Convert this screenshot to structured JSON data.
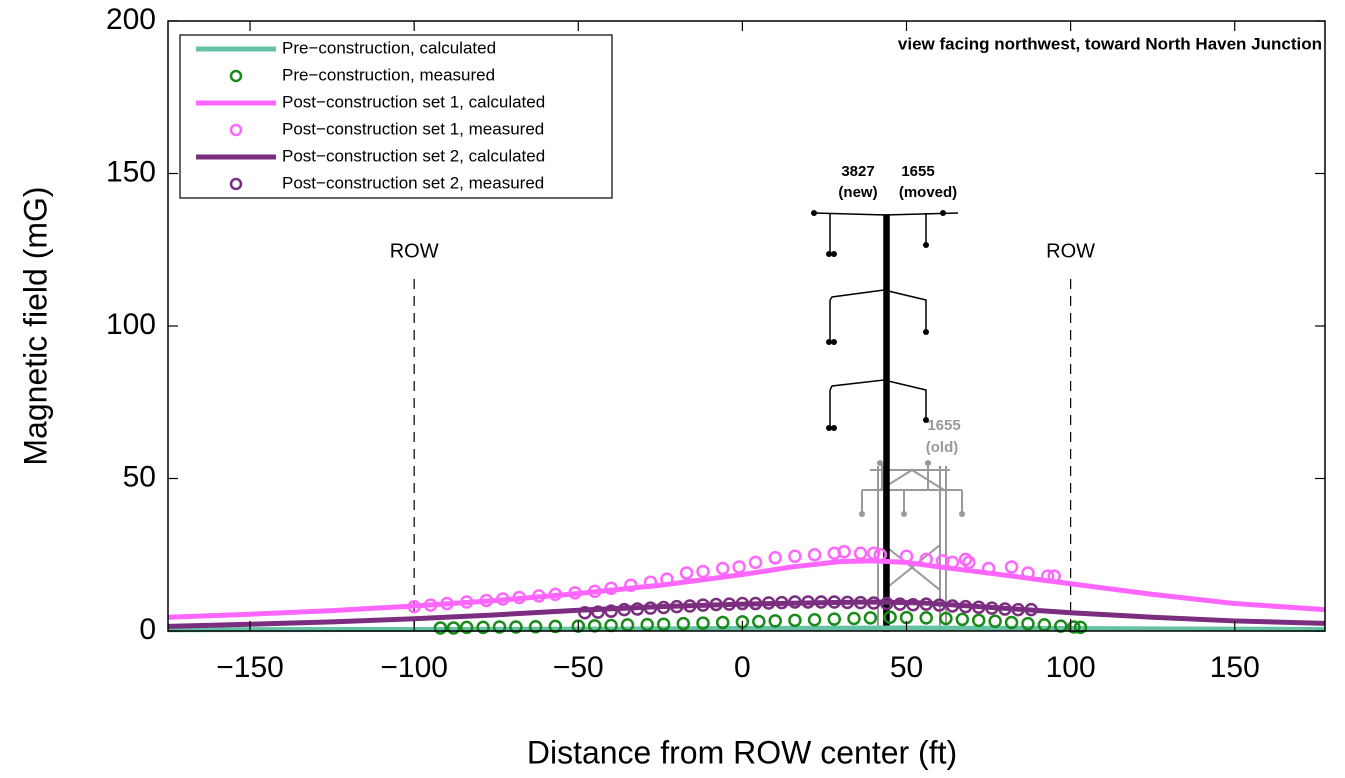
{
  "chart_data": {
    "type": "line",
    "annotation": "view facing northwest, toward North Haven Junction",
    "xlabel": "Distance from ROW center (ft)",
    "ylabel": "Magnetic field (mG)",
    "xlim": [
      -175,
      177.5
    ],
    "ylim": [
      0,
      200
    ],
    "xticks": [
      {
        "value": -150,
        "label": "−150"
      },
      {
        "value": -100,
        "label": "−100"
      },
      {
        "value": -50,
        "label": "−50"
      },
      0,
      50,
      100,
      150
    ],
    "yticks": [
      0,
      50,
      100,
      150,
      200
    ],
    "row_lines": [
      {
        "x": -100,
        "label": "ROW"
      },
      {
        "x": 100,
        "label": "ROW"
      }
    ],
    "structure_labels": [
      "3827",
      "(new)",
      "1655",
      "(moved)",
      "1655",
      "(old)"
    ],
    "series": [
      {
        "name": "Pre−construction, calculated",
        "style": "line",
        "color": "#66c2a5",
        "x": [
          -175,
          -100,
          -50,
          0,
          50,
          100,
          177.5
        ],
        "values": [
          0.4,
          0.5,
          0.6,
          0.8,
          1.0,
          0.8,
          0.5
        ]
      },
      {
        "name": "Pre−construction, measured",
        "style": "circle",
        "color": "#1a8a1a",
        "x": [
          -92,
          -88,
          -84,
          -79,
          -74,
          -69,
          -63,
          -57,
          -50,
          -45,
          -40,
          -35,
          -29,
          -24,
          -18,
          -12,
          -6,
          0,
          5,
          10,
          16,
          22,
          28,
          34,
          39,
          45,
          50,
          56,
          62,
          67,
          72,
          77,
          82,
          87,
          92,
          97,
          101,
          103
        ],
        "values": [
          1,
          1,
          1.2,
          1.2,
          1.3,
          1.3,
          1.4,
          1.5,
          1.6,
          1.7,
          1.8,
          2,
          2.1,
          2.2,
          2.4,
          2.6,
          2.8,
          3,
          3.1,
          3.3,
          3.5,
          3.7,
          3.9,
          4.1,
          4.3,
          4.5,
          4.4,
          4.3,
          4.1,
          3.8,
          3.5,
          3.2,
          2.8,
          2.4,
          2,
          1.6,
          1.3,
          1.2
        ]
      },
      {
        "name": "Post−construction set 1, calculated",
        "style": "line",
        "color": "#ff66ff",
        "x": [
          -175,
          -150,
          -125,
          -100,
          -75,
          -50,
          -25,
          0,
          15,
          30,
          40,
          50,
          60,
          75,
          100,
          125,
          150,
          177.5
        ],
        "values": [
          4.5,
          5.5,
          6.7,
          8.2,
          10,
          12.3,
          15,
          18.5,
          21,
          22.8,
          23,
          22.5,
          21,
          19,
          15.5,
          12,
          9,
          7
        ]
      },
      {
        "name": "Post−construction set 1, measured",
        "style": "circle",
        "color": "#ff66ff",
        "x": [
          -100,
          -95,
          -90,
          -84,
          -78,
          -73,
          -68,
          -62,
          -57,
          -51,
          -45,
          -40,
          -34,
          -28,
          -23,
          -17,
          -12,
          -6,
          -1,
          4,
          10,
          16,
          22,
          28,
          31,
          36,
          40,
          42,
          50,
          56,
          61,
          64,
          68,
          69,
          75,
          82,
          87,
          93,
          95
        ],
        "values": [
          8,
          8.5,
          9,
          9.5,
          10,
          10.5,
          11,
          11.5,
          12,
          12.5,
          13,
          14,
          15,
          16,
          17,
          19,
          19.5,
          20.5,
          21,
          22.5,
          24,
          24.5,
          25,
          25.5,
          26,
          25.5,
          25.5,
          25,
          24.5,
          23.5,
          23,
          22.5,
          23.5,
          22.5,
          20.5,
          21,
          19,
          18,
          18
        ]
      },
      {
        "name": "Post−construction set 2, calculated",
        "style": "line",
        "color": "#7b2d7f",
        "x": [
          -175,
          -150,
          -125,
          -100,
          -75,
          -50,
          -25,
          0,
          25,
          40,
          55,
          75,
          100,
          125,
          150,
          177.5
        ],
        "values": [
          1.5,
          2.2,
          3,
          4,
          5.3,
          6.8,
          8,
          8.8,
          9.3,
          9.5,
          9.2,
          7.8,
          6,
          4.5,
          3.3,
          2.5
        ]
      },
      {
        "name": "Post−construction set 2, measured",
        "style": "circle",
        "color": "#7b2d7f",
        "x": [
          -48,
          -44,
          -40,
          -36,
          -32,
          -28,
          -24,
          -20,
          -16,
          -12,
          -8,
          -4,
          0,
          4,
          8,
          12,
          16,
          20,
          24,
          28,
          32,
          36,
          40,
          44,
          48,
          52,
          56,
          60,
          64,
          68,
          72,
          76,
          80,
          84,
          88
        ],
        "values": [
          6,
          6.2,
          6.5,
          7,
          7.2,
          7.5,
          7.7,
          8,
          8.2,
          8.5,
          8.7,
          8.8,
          9,
          9,
          9.2,
          9.3,
          9.5,
          9.5,
          9.5,
          9.5,
          9.4,
          9.3,
          9.2,
          9,
          8.8,
          8.6,
          8.8,
          8.5,
          8.2,
          8,
          7.8,
          7.5,
          7.2,
          7,
          7
        ]
      }
    ]
  }
}
